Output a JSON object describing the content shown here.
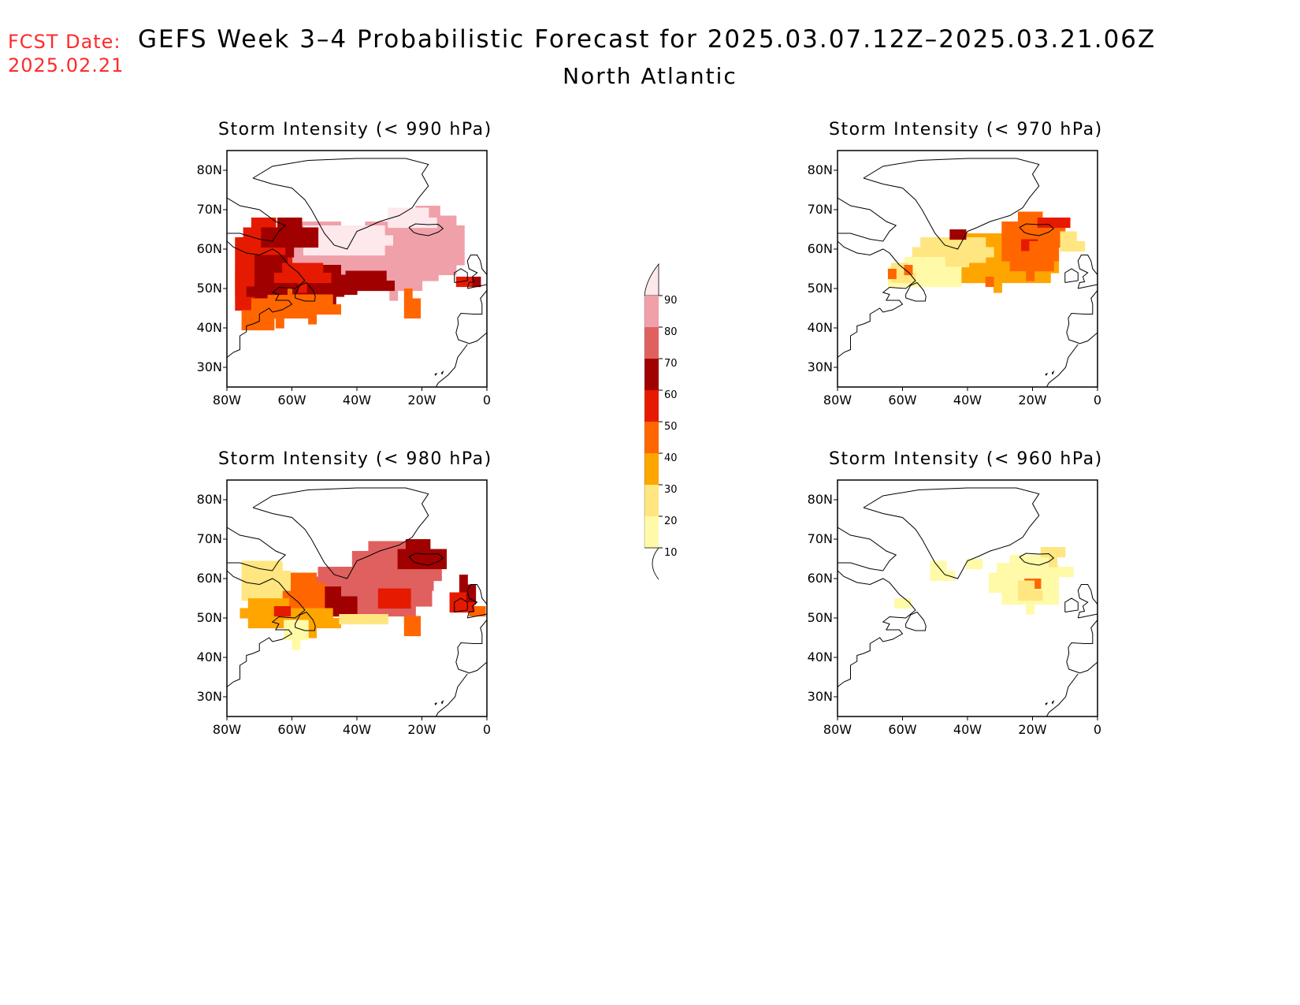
{
  "header": {
    "fcst_label": "FCST Date:",
    "fcst_date": "2025.02.21",
    "title": "GEFS Week 3–4 Probabilistic Forecast for 2025.03.07.12Z–2025.03.21.06Z",
    "subtitle": "North Atlantic"
  },
  "axes": {
    "lat_labels": [
      "80N",
      "70N",
      "60N",
      "50N",
      "40N",
      "30N"
    ],
    "lon_labels": [
      "80W",
      "60W",
      "40W",
      "20W",
      "0"
    ]
  },
  "panels": [
    {
      "id": "p990",
      "title": "Storm Intensity (< 990 hPa)",
      "threshold_hPa": 990,
      "intensity": "high"
    },
    {
      "id": "p970",
      "title": "Storm Intensity (< 970 hPa)",
      "threshold_hPa": 970,
      "intensity": "medium"
    },
    {
      "id": "p980",
      "title": "Storm Intensity (< 980 hPa)",
      "threshold_hPa": 980,
      "intensity": "high-medium"
    },
    {
      "id": "p960",
      "title": "Storm Intensity (< 960 hPa)",
      "threshold_hPa": 960,
      "intensity": "low"
    }
  ],
  "colorbar": {
    "levels": [
      "10",
      "20",
      "30",
      "40",
      "50",
      "60",
      "70",
      "80",
      "90"
    ],
    "colors": [
      "#fffaa8",
      "#ffe680",
      "#ffa500",
      "#ff6600",
      "#e61a00",
      "#a00000",
      "#e06060",
      "#f0a0a8",
      "#fde8ec"
    ]
  }
}
